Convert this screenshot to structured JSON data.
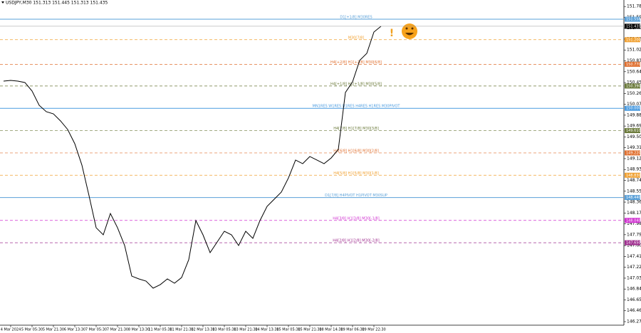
{
  "chart_data": {
    "type": "line",
    "title": "USDJPY,M30  151.313 151.445 151.313 151.435",
    "color": "#000000",
    "categories": [
      null,
      "4 Mar 2024",
      null,
      null,
      "5 Mar 05:30",
      null,
      null,
      "5 Mar 21:30",
      null,
      null,
      "6 Mar 13:30",
      null,
      null,
      "7 Mar 05:30",
      null,
      null,
      "7 Mar 21:30",
      null,
      null,
      "8 Mar 13:30",
      null,
      null,
      "11 Mar 05:30",
      null,
      null,
      "11 Mar 21:30",
      null,
      null,
      "12 Mar 13:30",
      null,
      null,
      "13 Mar 05:30",
      null,
      null,
      "13 Mar 21:30",
      null,
      null,
      "14 Mar 13:30",
      null,
      null,
      "15 Mar 05:30",
      null,
      null,
      "15 Mar 21:30",
      null,
      null,
      "18 Mar 14:30",
      null,
      null,
      "19 Mar 06:30",
      null,
      null,
      "19 Mar 22:30",
      null
    ],
    "values": [
      150.476,
      150.488,
      150.476,
      150.451,
      150.302,
      150.053,
      149.941,
      149.903,
      149.779,
      149.63,
      149.381,
      149.007,
      148.472,
      147.912,
      147.788,
      148.161,
      147.912,
      147.601,
      147.066,
      147.017,
      146.979,
      146.855,
      146.917,
      147.017,
      146.942,
      147.041,
      147.353,
      148.037,
      147.788,
      147.477,
      147.664,
      147.85,
      147.788,
      147.601,
      147.85,
      147.726,
      148.037,
      148.286,
      148.41,
      148.535,
      148.783,
      149.095,
      149.032,
      149.157,
      149.095,
      149.032,
      149.132,
      149.281,
      150.277,
      150.463,
      150.837,
      150.961,
      151.334,
      151.435
    ],
    "ylim": [
      146.208,
      151.894
    ],
    "yticks": [
      {
        "value": 146.27,
        "label": "146.270"
      },
      {
        "value": 146.46,
        "label": "146.460"
      },
      {
        "value": 146.65,
        "label": "146.650"
      },
      {
        "value": 146.84,
        "label": "146.840"
      },
      {
        "value": 147.03,
        "label": "147.030"
      },
      {
        "value": 147.22,
        "label": "147.220"
      },
      {
        "value": 147.41,
        "label": "147.410"
      },
      {
        "value": 147.6,
        "label": "147.600"
      },
      {
        "value": 147.79,
        "label": "147.790"
      },
      {
        "value": 147.98,
        "label": "147.980"
      },
      {
        "value": 148.17,
        "label": "148.170"
      },
      {
        "value": 148.36,
        "label": "148.360"
      },
      {
        "value": 148.55,
        "label": "148.550"
      },
      {
        "value": 148.74,
        "label": "148.740"
      },
      {
        "value": 148.93,
        "label": "148.930"
      },
      {
        "value": 149.12,
        "label": "149.120"
      },
      {
        "value": 149.31,
        "label": "149.310"
      },
      {
        "value": 149.5,
        "label": "149.500"
      },
      {
        "value": 149.69,
        "label": "149.690"
      },
      {
        "value": 149.88,
        "label": "149.880"
      },
      {
        "value": 150.07,
        "label": "150.070"
      },
      {
        "value": 150.26,
        "label": "150.260"
      },
      {
        "value": 150.45,
        "label": "150.450"
      },
      {
        "value": 150.64,
        "label": "150.640"
      },
      {
        "value": 150.83,
        "label": "150.830"
      },
      {
        "value": 151.02,
        "label": "151.020"
      },
      {
        "value": 151.21,
        "label": "151.210"
      },
      {
        "value": 151.4,
        "label": "151.400"
      },
      {
        "value": 151.59,
        "label": "151.590"
      },
      {
        "value": 151.78,
        "label": "151.780"
      }
    ],
    "levels": [
      {
        "name": "D1[+1/8] M30RES",
        "value": 151.558,
        "label": "151.558",
        "color": "#5aa0d8",
        "dashed": false
      },
      {
        "name": "M30[7/8]",
        "value": 151.2,
        "label": "151.200",
        "color": "#f0a030",
        "dashed": true
      },
      {
        "name": "H4[+2/8] H1[+2/8] M30[6/8]",
        "value": 150.77,
        "label": "150.770",
        "color": "#e07030",
        "dashed": true
      },
      {
        "name": "H4[+1/8] H1[+1/8] M30[5/8]",
        "value": 150.39,
        "label": "150.390",
        "color": "#6b7a3a",
        "dashed": true
      },
      {
        "name": "MN1RES W1RES D1RES H4RES H1RES M30PIVOT",
        "value": 150.0,
        "label": "150.000",
        "color": "#4a9be0",
        "dashed": false
      },
      {
        "name": "H4[7/8] H1[7/8] M30[3/8]",
        "value": 149.61,
        "label": "149.610",
        "color": "#6b7a3a",
        "dashed": true
      },
      {
        "name": "H4[6/8] H1[6/8] M30[2/8]",
        "value": 149.22,
        "label": "149.220",
        "color": "#e07030",
        "dashed": true
      },
      {
        "name": "H4[5/8] H1[5/8] M30[1/8]",
        "value": 148.83,
        "label": "148.830",
        "color": "#f0a030",
        "dashed": true
      },
      {
        "name": "D1[7/8] H4PIVOT H1PIVOT M30SUP",
        "value": 148.44,
        "label": "148.440",
        "color": "#5aa0d8",
        "dashed": false
      },
      {
        "name": "H4[3/8] H1[3/8] M30[-1/8]",
        "value": 148.04,
        "label": "148.040",
        "color": "#d030d0",
        "dashed": true
      },
      {
        "name": "H4[2/8] H1[2/8] M30[-2/8]",
        "value": 147.65,
        "label": "147.650",
        "color": "#a03090",
        "dashed": true
      }
    ],
    "current_price": {
      "value": 151.435,
      "label": "151.435"
    },
    "alert": "!"
  }
}
